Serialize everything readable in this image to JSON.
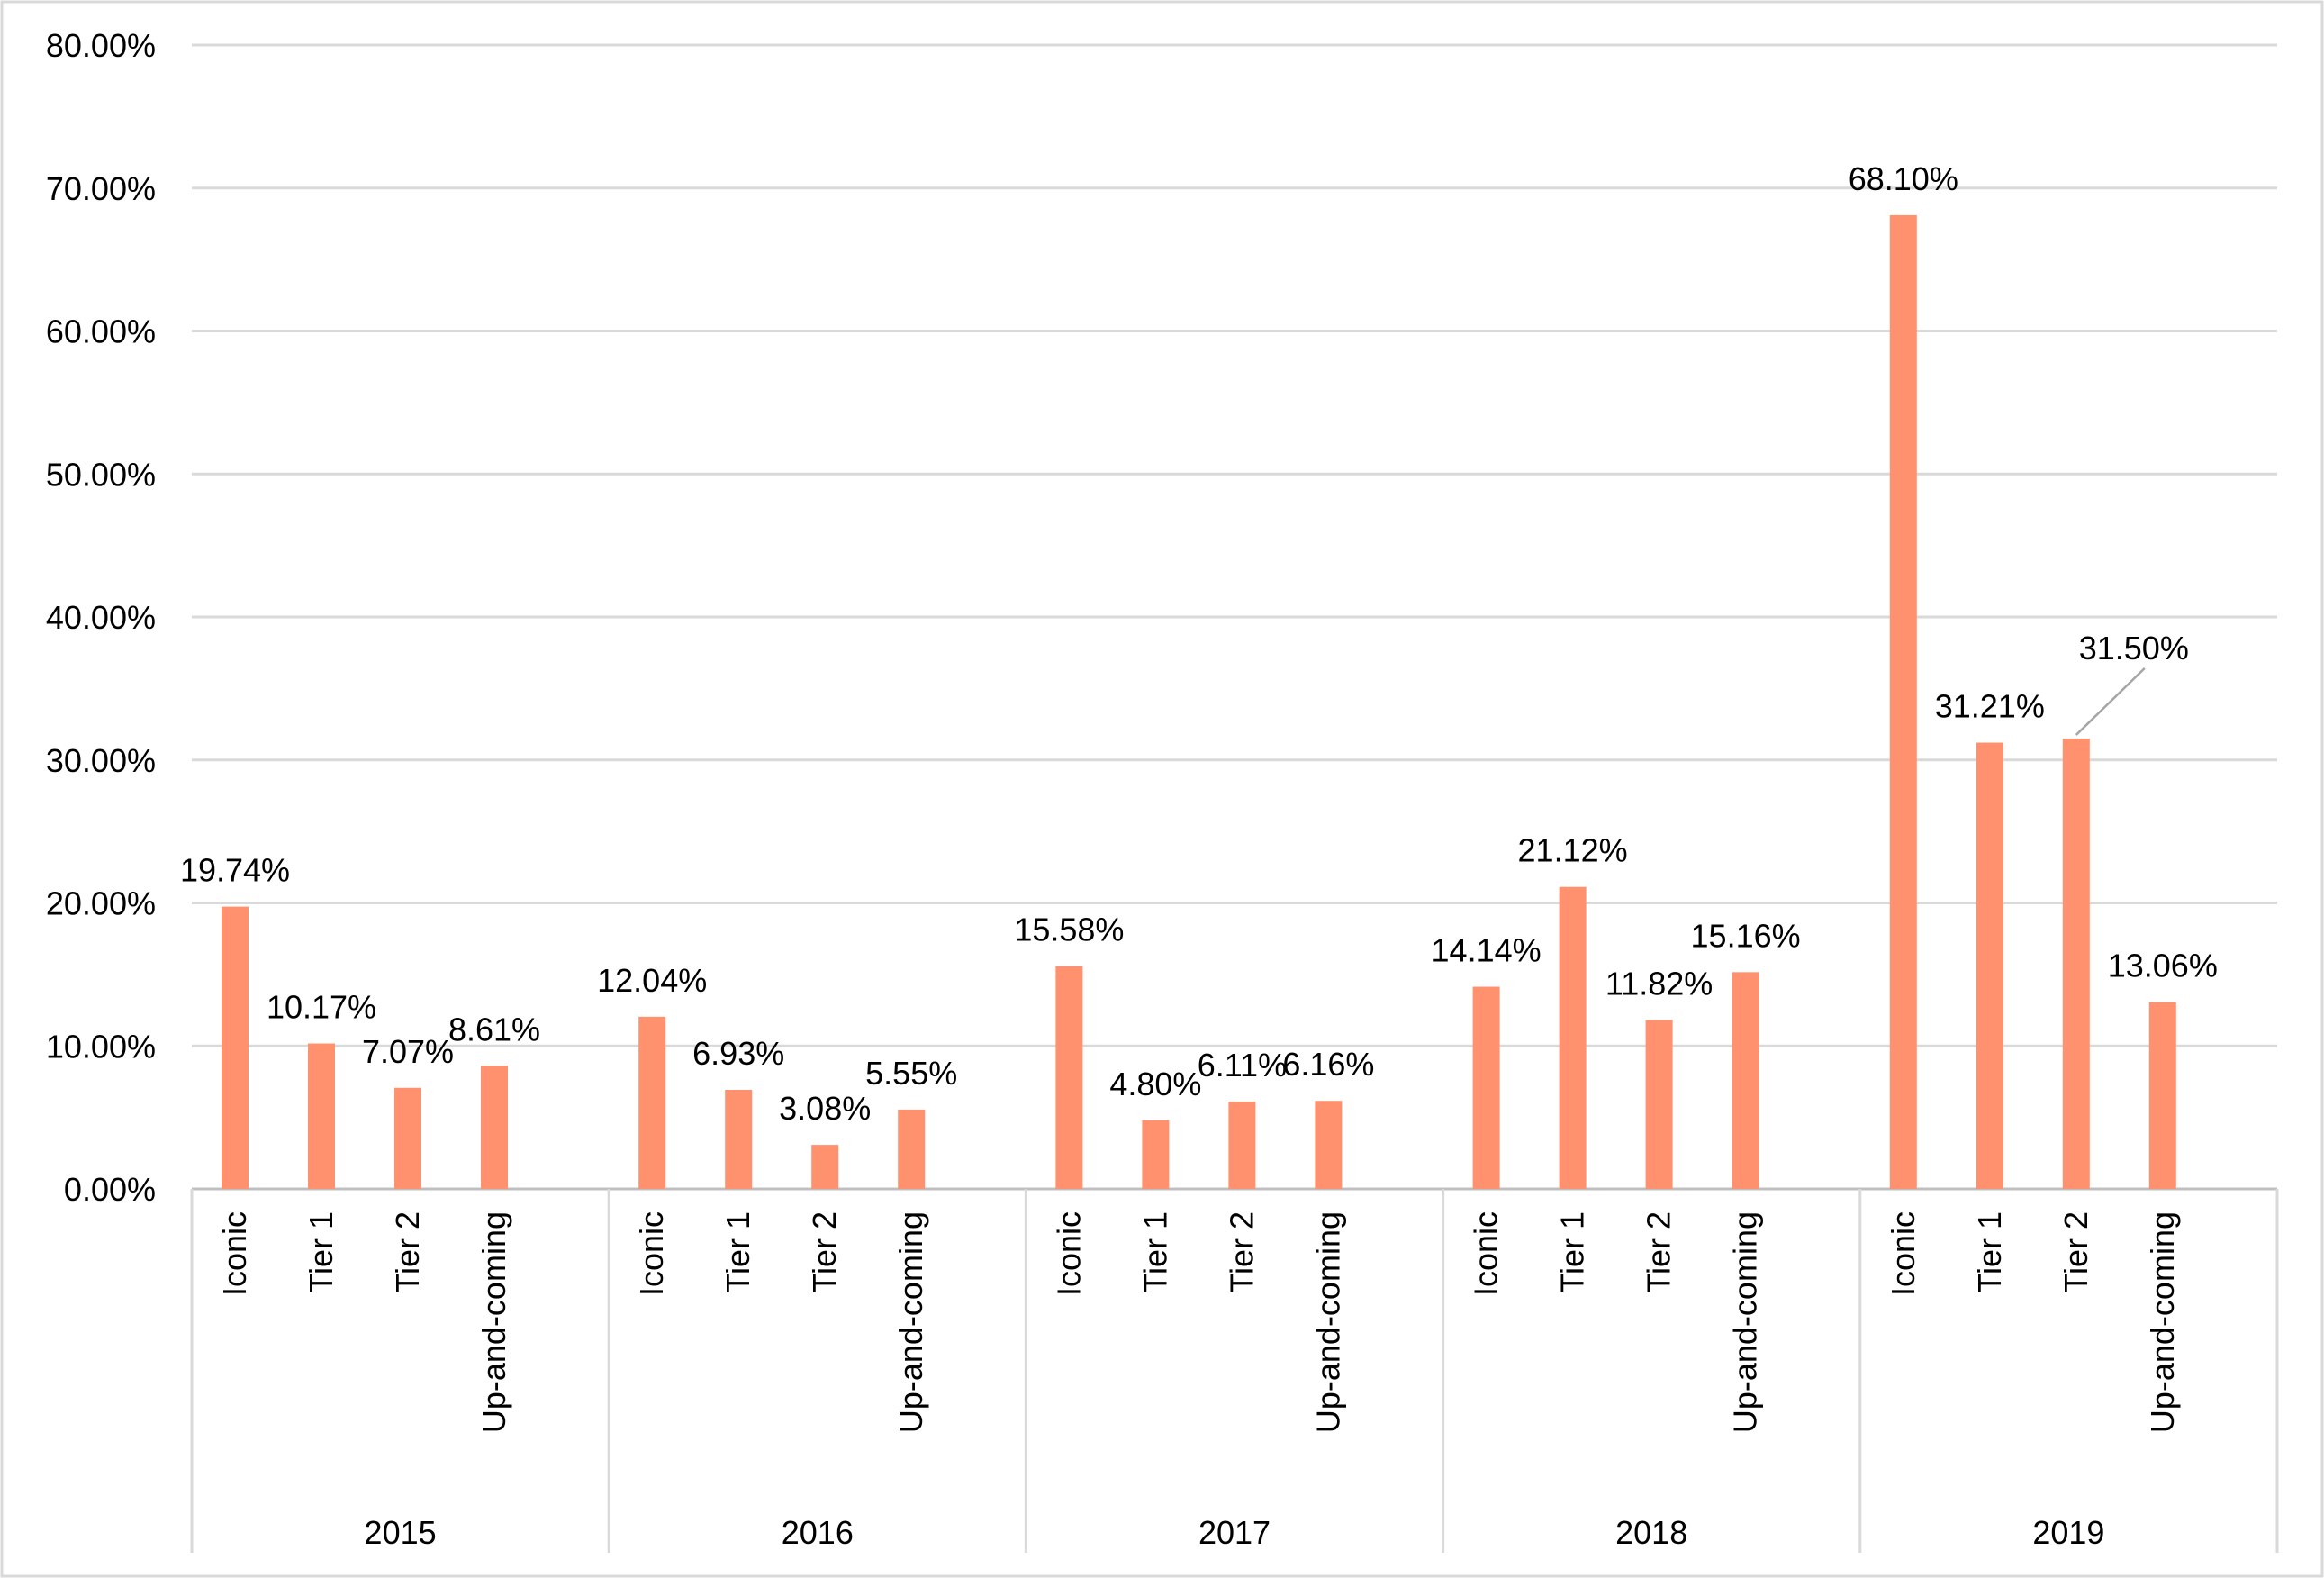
{
  "chart_data": {
    "type": "bar",
    "title": "",
    "xlabel": "",
    "ylabel": "",
    "ylim": [
      0,
      80
    ],
    "y_ticks": [
      "0.00%",
      "10.00%",
      "20.00%",
      "30.00%",
      "40.00%",
      "50.00%",
      "60.00%",
      "70.00%",
      "80.00%"
    ],
    "grid": true,
    "legend": "none",
    "bar_color": "#FF916F",
    "groups": [
      {
        "year": "2015",
        "bars": [
          {
            "category": "Iconic",
            "value": 19.74,
            "label": "19.74%"
          },
          {
            "category": "Tier 1",
            "value": 10.17,
            "label": "10.17%"
          },
          {
            "category": "Tier 2",
            "value": 7.07,
            "label": "7.07%"
          },
          {
            "category": "Up-and-coming",
            "value": 8.61,
            "label": "8.61%"
          }
        ]
      },
      {
        "year": "2016",
        "bars": [
          {
            "category": "Iconic",
            "value": 12.04,
            "label": "12.04%"
          },
          {
            "category": "Tier 1",
            "value": 6.93,
            "label": "6.93%"
          },
          {
            "category": "Tier 2",
            "value": 3.08,
            "label": "3.08%"
          },
          {
            "category": "Up-and-coming",
            "value": 5.55,
            "label": "5.55%"
          }
        ]
      },
      {
        "year": "2017",
        "bars": [
          {
            "category": "Iconic",
            "value": 15.58,
            "label": "15.58%"
          },
          {
            "category": "Tier 1",
            "value": 4.8,
            "label": "4.80%"
          },
          {
            "category": "Tier 2",
            "value": 6.11,
            "label": "6.11%"
          },
          {
            "category": "Up-and-coming",
            "value": 6.16,
            "label": "6.16%"
          }
        ]
      },
      {
        "year": "2018",
        "bars": [
          {
            "category": "Iconic",
            "value": 14.14,
            "label": "14.14%"
          },
          {
            "category": "Tier 1",
            "value": 21.12,
            "label": "21.12%"
          },
          {
            "category": "Tier 2",
            "value": 11.82,
            "label": "11.82%"
          },
          {
            "category": "Up-and-coming",
            "value": 15.16,
            "label": "15.16%"
          }
        ]
      },
      {
        "year": "2019",
        "bars": [
          {
            "category": "Iconic",
            "value": 68.1,
            "label": "68.10%"
          },
          {
            "category": "Tier 1",
            "value": 31.21,
            "label": "31.21%"
          },
          {
            "category": "Tier 2",
            "value": 31.5,
            "label": "31.50%"
          },
          {
            "category": "Up-and-coming",
            "value": 13.06,
            "label": "13.06%"
          }
        ]
      }
    ]
  }
}
